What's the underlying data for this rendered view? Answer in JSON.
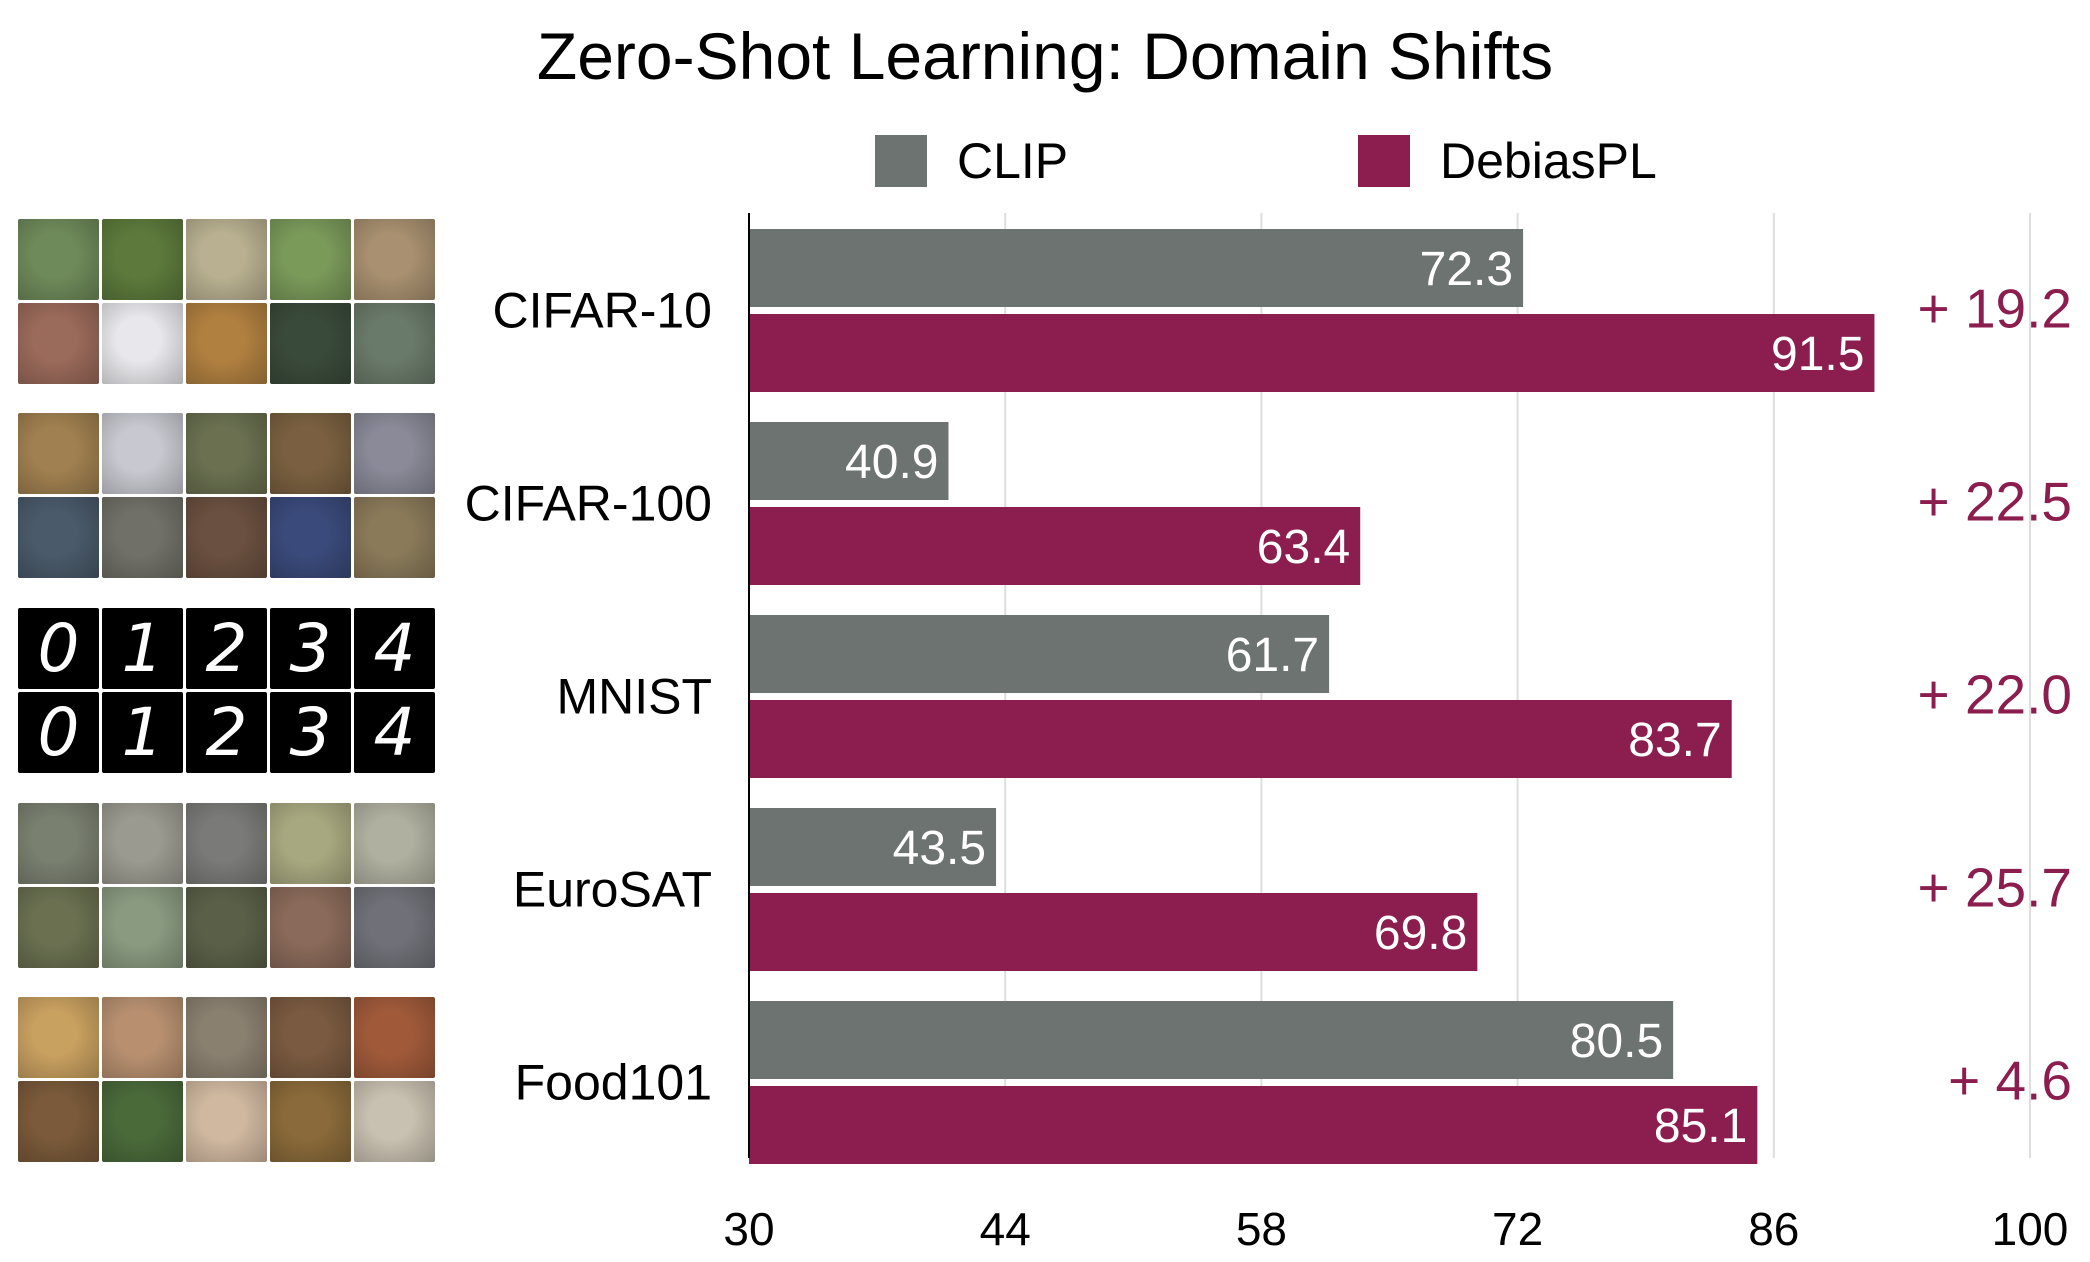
{
  "chart_data": {
    "type": "bar",
    "orientation": "horizontal",
    "title": "Zero-Shot Learning: Domain Shifts",
    "categories": [
      "CIFAR-10",
      "CIFAR-100",
      "MNIST",
      "EuroSAT",
      "Food101"
    ],
    "series": [
      {
        "name": "CLIP",
        "values": [
          72.3,
          40.9,
          61.7,
          43.5,
          80.5
        ],
        "color": "#6d7370"
      },
      {
        "name": "DebiasPL",
        "values": [
          91.5,
          63.4,
          83.7,
          69.8,
          85.1
        ],
        "color": "#8b1e4e"
      }
    ],
    "deltas": [
      "+ 19.2",
      "+ 22.5",
      "+ 22.0",
      "+ 25.7",
      "+ 4.6"
    ],
    "delta_color": "#8b1e4e",
    "xlim": [
      30,
      100
    ],
    "xticks": [
      30,
      44,
      58,
      72,
      86,
      100
    ],
    "xlabel": "",
    "ylabel": "",
    "grid": "vertical",
    "legend": "top-center"
  },
  "thumbnails": [
    {
      "dataset": "CIFAR-10",
      "style": "photo",
      "colors": [
        "#6f8a5a",
        "#5d7a3c",
        "#b8b090",
        "#7a9a5a",
        "#a89070",
        "#9a6a5a",
        "#e8e8ec",
        "#b08040",
        "#3a4a3a",
        "#6a7a6a"
      ]
    },
    {
      "dataset": "CIFAR-100",
      "style": "photo",
      "colors": [
        "#a08050",
        "#c8c8d0",
        "#6a7050",
        "#7a6040",
        "#8a8a98",
        "#4a5a6a",
        "#707068",
        "#6a5040",
        "#3a4a7a",
        "#8a7a5a"
      ]
    },
    {
      "dataset": "MNIST",
      "style": "digits",
      "digits": [
        "0",
        "1",
        "2",
        "3",
        "4",
        "0",
        "1",
        "2",
        "3",
        "4"
      ]
    },
    {
      "dataset": "EuroSAT",
      "style": "photo",
      "colors": [
        "#7a8070",
        "#9a9a90",
        "#7a7a78",
        "#a8a880",
        "#b0b0a0",
        "#6a7050",
        "#8a9a80",
        "#5a6048",
        "#8a6a5a",
        "#707078"
      ]
    },
    {
      "dataset": "Food101",
      "style": "photo",
      "colors": [
        "#c8a060",
        "#b89070",
        "#8a8070",
        "#7a5a40",
        "#a05a3a",
        "#7a5a3a",
        "#4a6a3a",
        "#d0b8a0",
        "#8a6a3a",
        "#c8c0b0"
      ]
    }
  ]
}
